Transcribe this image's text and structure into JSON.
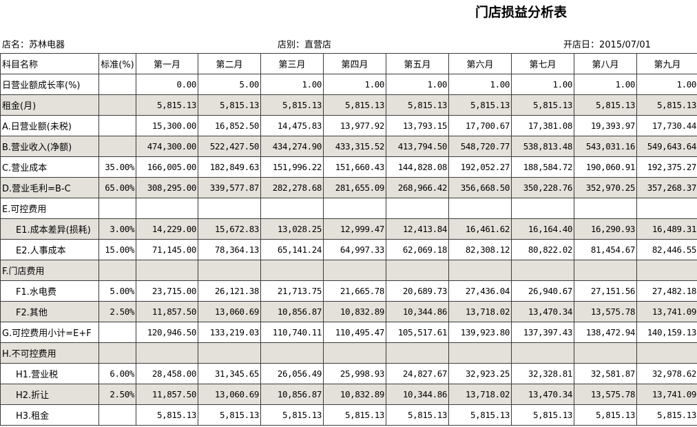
{
  "header": {
    "title": "门店损益分析表",
    "store_name": "店名：苏林电器",
    "store_type": "店别：直营店",
    "open_date": "开店日：2015/07/01"
  },
  "table": {
    "columns": [
      "科目名称",
      "标准(%)",
      "第一月",
      "第二月",
      "第三月",
      "第四月",
      "第五月",
      "第六月",
      "第七月",
      "第八月",
      "第九月"
    ],
    "rows": [
      {
        "label": "日营业额成长率(%)",
        "values": [
          "0.00",
          "5.00",
          "1.00",
          "1.00",
          "1.00",
          "1.00",
          "1.00",
          "1.00",
          "1.00"
        ]
      },
      {
        "label": "租金(月)",
        "values": [
          "5,815.13",
          "5,815.13",
          "5,815.13",
          "5,815.13",
          "5,815.13",
          "5,815.13",
          "5,815.13",
          "5,815.13",
          "5,815.13"
        ]
      },
      {
        "label": "A.日营业额(未税)",
        "values": [
          "15,300.00",
          "16,852.50",
          "14,475.83",
          "13,977.92",
          "13,793.15",
          "17,700.67",
          "17,381.08",
          "19,393.97",
          "17,730.44"
        ]
      },
      {
        "label": "B.营业收入(净额)",
        "values": [
          "474,300.00",
          "522,427.50",
          "434,274.90",
          "433,315.52",
          "413,794.50",
          "548,720.77",
          "538,813.48",
          "543,031.16",
          "549,643.64"
        ]
      },
      {
        "label": "C.营业成本",
        "standard": "35.00%",
        "values": [
          "166,005.00",
          "182,849.63",
          "151,996.22",
          "151,660.43",
          "144,828.08",
          "192,052.27",
          "188,584.72",
          "190,060.91",
          "192,375.27"
        ]
      },
      {
        "label": "D.营业毛利=B-C",
        "standard": "65.00%",
        "values": [
          "308,295.00",
          "339,577.87",
          "282,278.68",
          "281,655.09",
          "268,966.42",
          "356,668.50",
          "350,228.76",
          "352,970.25",
          "357,268.37"
        ]
      },
      {
        "label": "E.可控费用"
      },
      {
        "label": "E1.成本差异(损耗)",
        "standard": "3.00%",
        "values": [
          "14,229.00",
          "15,672.83",
          "13,028.25",
          "12,999.47",
          "12,413.84",
          "16,461.62",
          "16,164.40",
          "16,290.93",
          "16,489.31"
        ]
      },
      {
        "label": "E2.人事成本",
        "standard": "15.00%",
        "values": [
          "71,145.00",
          "78,364.13",
          "65,141.24",
          "64,997.33",
          "62,069.18",
          "82,308.12",
          "80,822.02",
          "81,454.67",
          "82,446.55"
        ]
      },
      {
        "label": "F.门店费用"
      },
      {
        "label": "F1.水电费",
        "standard": "5.00%",
        "values": [
          "23,715.00",
          "26,121.38",
          "21,713.75",
          "21,665.78",
          "20,689.73",
          "27,436.04",
          "26,940.67",
          "27,151.56",
          "27,482.18"
        ]
      },
      {
        "label": "F2.其他",
        "standard": "2.50%",
        "values": [
          "11,857.50",
          "13,060.69",
          "10,856.87",
          "10,832.89",
          "10,344.86",
          "13,718.02",
          "13,470.34",
          "13,575.78",
          "13,741.09"
        ]
      },
      {
        "label": "G.可控费用小计=E+F",
        "values": [
          "120,946.50",
          "133,219.03",
          "110,740.11",
          "110,495.47",
          "105,517.61",
          "139,923.80",
          "137,397.43",
          "138,472.94",
          "140,159.13"
        ]
      },
      {
        "label": "H.不可控费用"
      },
      {
        "label": "H1.营业税",
        "standard": "6.00%",
        "values": [
          "28,458.00",
          "31,345.65",
          "26,056.49",
          "25,998.93",
          "24,827.67",
          "32,923.25",
          "32,328.81",
          "32,581.87",
          "32,978.62"
        ]
      },
      {
        "label": "H2.折让",
        "standard": "2.50%",
        "values": [
          "11,857.50",
          "13,060.69",
          "10,856.87",
          "10,832.89",
          "10,344.86",
          "13,718.02",
          "13,470.34",
          "13,575.78",
          "13,741.09"
        ]
      },
      {
        "label": "H3.租金",
        "values": [
          "5,815.13",
          "5,815.13",
          "5,815.13",
          "5,815.13",
          "5,815.13",
          "5,815.13",
          "5,815.13",
          "5,815.13",
          "5,815.13"
        ]
      }
    ]
  }
}
